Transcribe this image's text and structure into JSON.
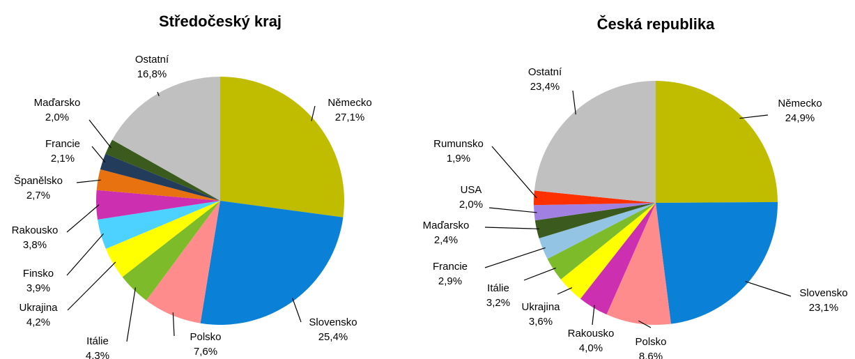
{
  "chart_data": [
    {
      "type": "pie",
      "title": "Středočeský kraj",
      "categories": [
        "Německo",
        "Slovensko",
        "Polsko",
        "Itálie",
        "Ukrajina",
        "Finsko",
        "Rakousko",
        "Španělsko",
        "Francie",
        "Maďarsko",
        "Ostatní"
      ],
      "values": [
        27.1,
        25.4,
        7.6,
        4.3,
        4.2,
        3.9,
        3.8,
        2.7,
        2.1,
        2.0,
        16.8
      ],
      "value_labels": [
        "27,1%",
        "25,4%",
        "7,6%",
        "4,3%",
        "4,2%",
        "3,9%",
        "3,8%",
        "2,7%",
        "2,1%",
        "2,0%",
        "16,8%"
      ],
      "colors": [
        "#c0bc00",
        "#0a80d6",
        "#ff8c8c",
        "#7dbb2a",
        "#ffff00",
        "#4dd2ff",
        "#cc2fb0",
        "#e8720f",
        "#243c5c",
        "#3a5a1e",
        "#c0c0c0"
      ]
    },
    {
      "type": "pie",
      "title": "Česká republika",
      "categories": [
        "Německo",
        "Slovensko",
        "Polsko",
        "Rakousko",
        "Ukrajina",
        "Itálie",
        "Francie",
        "Maďarsko",
        "USA",
        "Rumunsko",
        "Ostatní"
      ],
      "values": [
        24.9,
        23.1,
        8.6,
        4.0,
        3.6,
        3.2,
        2.9,
        2.4,
        2.0,
        1.9,
        23.4
      ],
      "value_labels": [
        "24,9%",
        "23,1%",
        "8,6%",
        "4,0%",
        "3,6%",
        "3,2%",
        "2,9%",
        "2,4%",
        "2,0%",
        "1,9%",
        "23,4%"
      ],
      "colors": [
        "#c0bc00",
        "#0a80d6",
        "#ff8c8c",
        "#cc2fb0",
        "#ffff00",
        "#7dbb2a",
        "#94c4e4",
        "#3a5a1e",
        "#a080e0",
        "#ff3000",
        "#c0c0c0"
      ]
    }
  ]
}
